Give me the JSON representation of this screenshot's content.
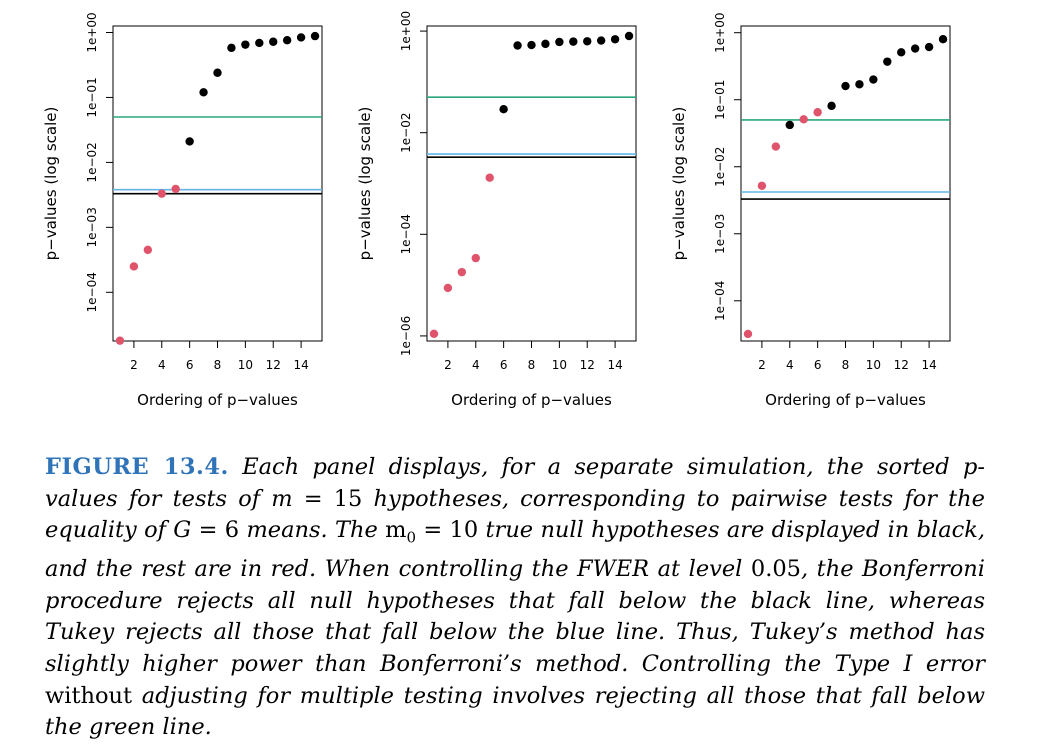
{
  "colors": {
    "null": "#000000",
    "nonnull": "#df536b",
    "green": "#28a87a",
    "blue": "#61b6e6",
    "black_line": "#000000",
    "caption_label": "#2f73b8"
  },
  "chart_data": [
    {
      "type": "scatter",
      "title": "",
      "xlabel": "Ordering of p−values",
      "ylabel": "p−values (log scale)",
      "y_scale": "log10",
      "xlim": [
        0.5,
        15.5
      ],
      "ylim_log10": [
        -4.75,
        0.1
      ],
      "x_ticks": [
        2,
        4,
        6,
        8,
        10,
        12,
        14
      ],
      "x_tick_labels": [
        "2",
        "4",
        "6",
        "8",
        "10",
        "12",
        "14"
      ],
      "y_ticks_log10": [
        0,
        -1,
        -2,
        -3,
        -4
      ],
      "y_tick_labels": [
        "1e+00",
        "1e−01",
        "1e−02",
        "1e−03",
        "1e−04"
      ],
      "x": [
        1,
        2,
        3,
        4,
        5,
        6,
        7,
        8,
        9,
        10,
        11,
        12,
        13,
        14,
        15
      ],
      "p_values": [
        1.8e-05,
        0.00025,
        0.00045,
        0.0033,
        0.0039,
        0.021,
        0.12,
        0.24,
        0.58,
        0.65,
        0.69,
        0.72,
        0.76,
        0.84,
        0.88
      ],
      "is_null": [
        false,
        false,
        false,
        false,
        false,
        true,
        true,
        true,
        true,
        true,
        true,
        true,
        true,
        true,
        true
      ],
      "reference_lines": [
        {
          "name": "green",
          "value": 0.05
        },
        {
          "name": "blue",
          "value": 0.0038
        },
        {
          "name": "black",
          "value": 0.0033
        }
      ]
    },
    {
      "type": "scatter",
      "title": "",
      "xlabel": "Ordering of p−values",
      "ylabel": "p−values (log scale)",
      "y_scale": "log10",
      "xlim": [
        0.5,
        15.5
      ],
      "ylim_log10": [
        -6.1,
        0.1
      ],
      "x_ticks": [
        2,
        4,
        6,
        8,
        10,
        12,
        14
      ],
      "x_tick_labels": [
        "2",
        "4",
        "6",
        "8",
        "10",
        "12",
        "14"
      ],
      "y_ticks_log10": [
        0,
        -2,
        -4,
        -6
      ],
      "y_tick_labels": [
        "1e+00",
        "1e−02",
        "1e−04",
        "1e−06"
      ],
      "x": [
        1,
        2,
        3,
        4,
        5,
        6,
        7,
        8,
        9,
        10,
        11,
        12,
        13,
        14,
        15
      ],
      "p_values": [
        1.1e-06,
        8.8e-06,
        1.8e-05,
        3.4e-05,
        0.0013,
        0.029,
        0.52,
        0.53,
        0.56,
        0.61,
        0.62,
        0.63,
        0.65,
        0.69,
        0.8
      ],
      "is_null": [
        false,
        false,
        false,
        false,
        false,
        true,
        true,
        true,
        true,
        true,
        true,
        true,
        true,
        true,
        true
      ],
      "reference_lines": [
        {
          "name": "green",
          "value": 0.05
        },
        {
          "name": "blue",
          "value": 0.0038
        },
        {
          "name": "black",
          "value": 0.0033
        }
      ]
    },
    {
      "type": "scatter",
      "title": "",
      "xlabel": "Ordering of p−values",
      "ylabel": "p−values (log scale)",
      "y_scale": "log10",
      "xlim": [
        0.5,
        15.5
      ],
      "ylim_log10": [
        -4.6,
        0.1
      ],
      "x_ticks": [
        2,
        4,
        6,
        8,
        10,
        12,
        14
      ],
      "x_tick_labels": [
        "2",
        "4",
        "6",
        "8",
        "10",
        "12",
        "14"
      ],
      "y_ticks_log10": [
        0,
        -1,
        -2,
        -3,
        -4
      ],
      "y_tick_labels": [
        "1e+00",
        "1e−01",
        "1e−02",
        "1e−03",
        "1e−04"
      ],
      "x": [
        1,
        2,
        3,
        4,
        5,
        6,
        7,
        8,
        9,
        10,
        11,
        12,
        13,
        14,
        15
      ],
      "p_values": [
        3.2e-05,
        0.0052,
        0.02,
        0.042,
        0.051,
        0.065,
        0.081,
        0.16,
        0.17,
        0.2,
        0.37,
        0.51,
        0.58,
        0.61,
        0.8
      ],
      "is_null": [
        false,
        false,
        false,
        true,
        false,
        false,
        true,
        true,
        true,
        true,
        true,
        true,
        true,
        true,
        true
      ],
      "reference_lines": [
        {
          "name": "green",
          "value": 0.05
        },
        {
          "name": "blue",
          "value": 0.0042
        },
        {
          "name": "black",
          "value": 0.0033
        }
      ]
    }
  ],
  "caption": {
    "label": "FIGURE 13.4.",
    "s1": "Each panel displays, for a separate simulation, the sorted p-values for tests of",
    "s2": "m",
    "s3": "= 15",
    "s4": "hypotheses, corresponding to pairwise tests for the equality of",
    "s5": "G",
    "s6": "= 6",
    "s7": "means. The",
    "s8": "m",
    "s9": "0",
    "s10": "= 10",
    "s11": "true null hypotheses are displayed in black, and the rest are in red. When controlling the FWER at level",
    "s12": "0.05",
    "s13": ", the Bonferroni procedure rejects all null hypotheses that fall below the black line, whereas Tukey rejects all those that fall below the blue line. Thus, Tukey’s method has slightly higher power than Bonferroni’s method. Controlling the",
    "s14": "Type I error",
    "s15": "without",
    "s16": "adjusting for multiple testing involves rejecting all those that fall below the green line."
  }
}
